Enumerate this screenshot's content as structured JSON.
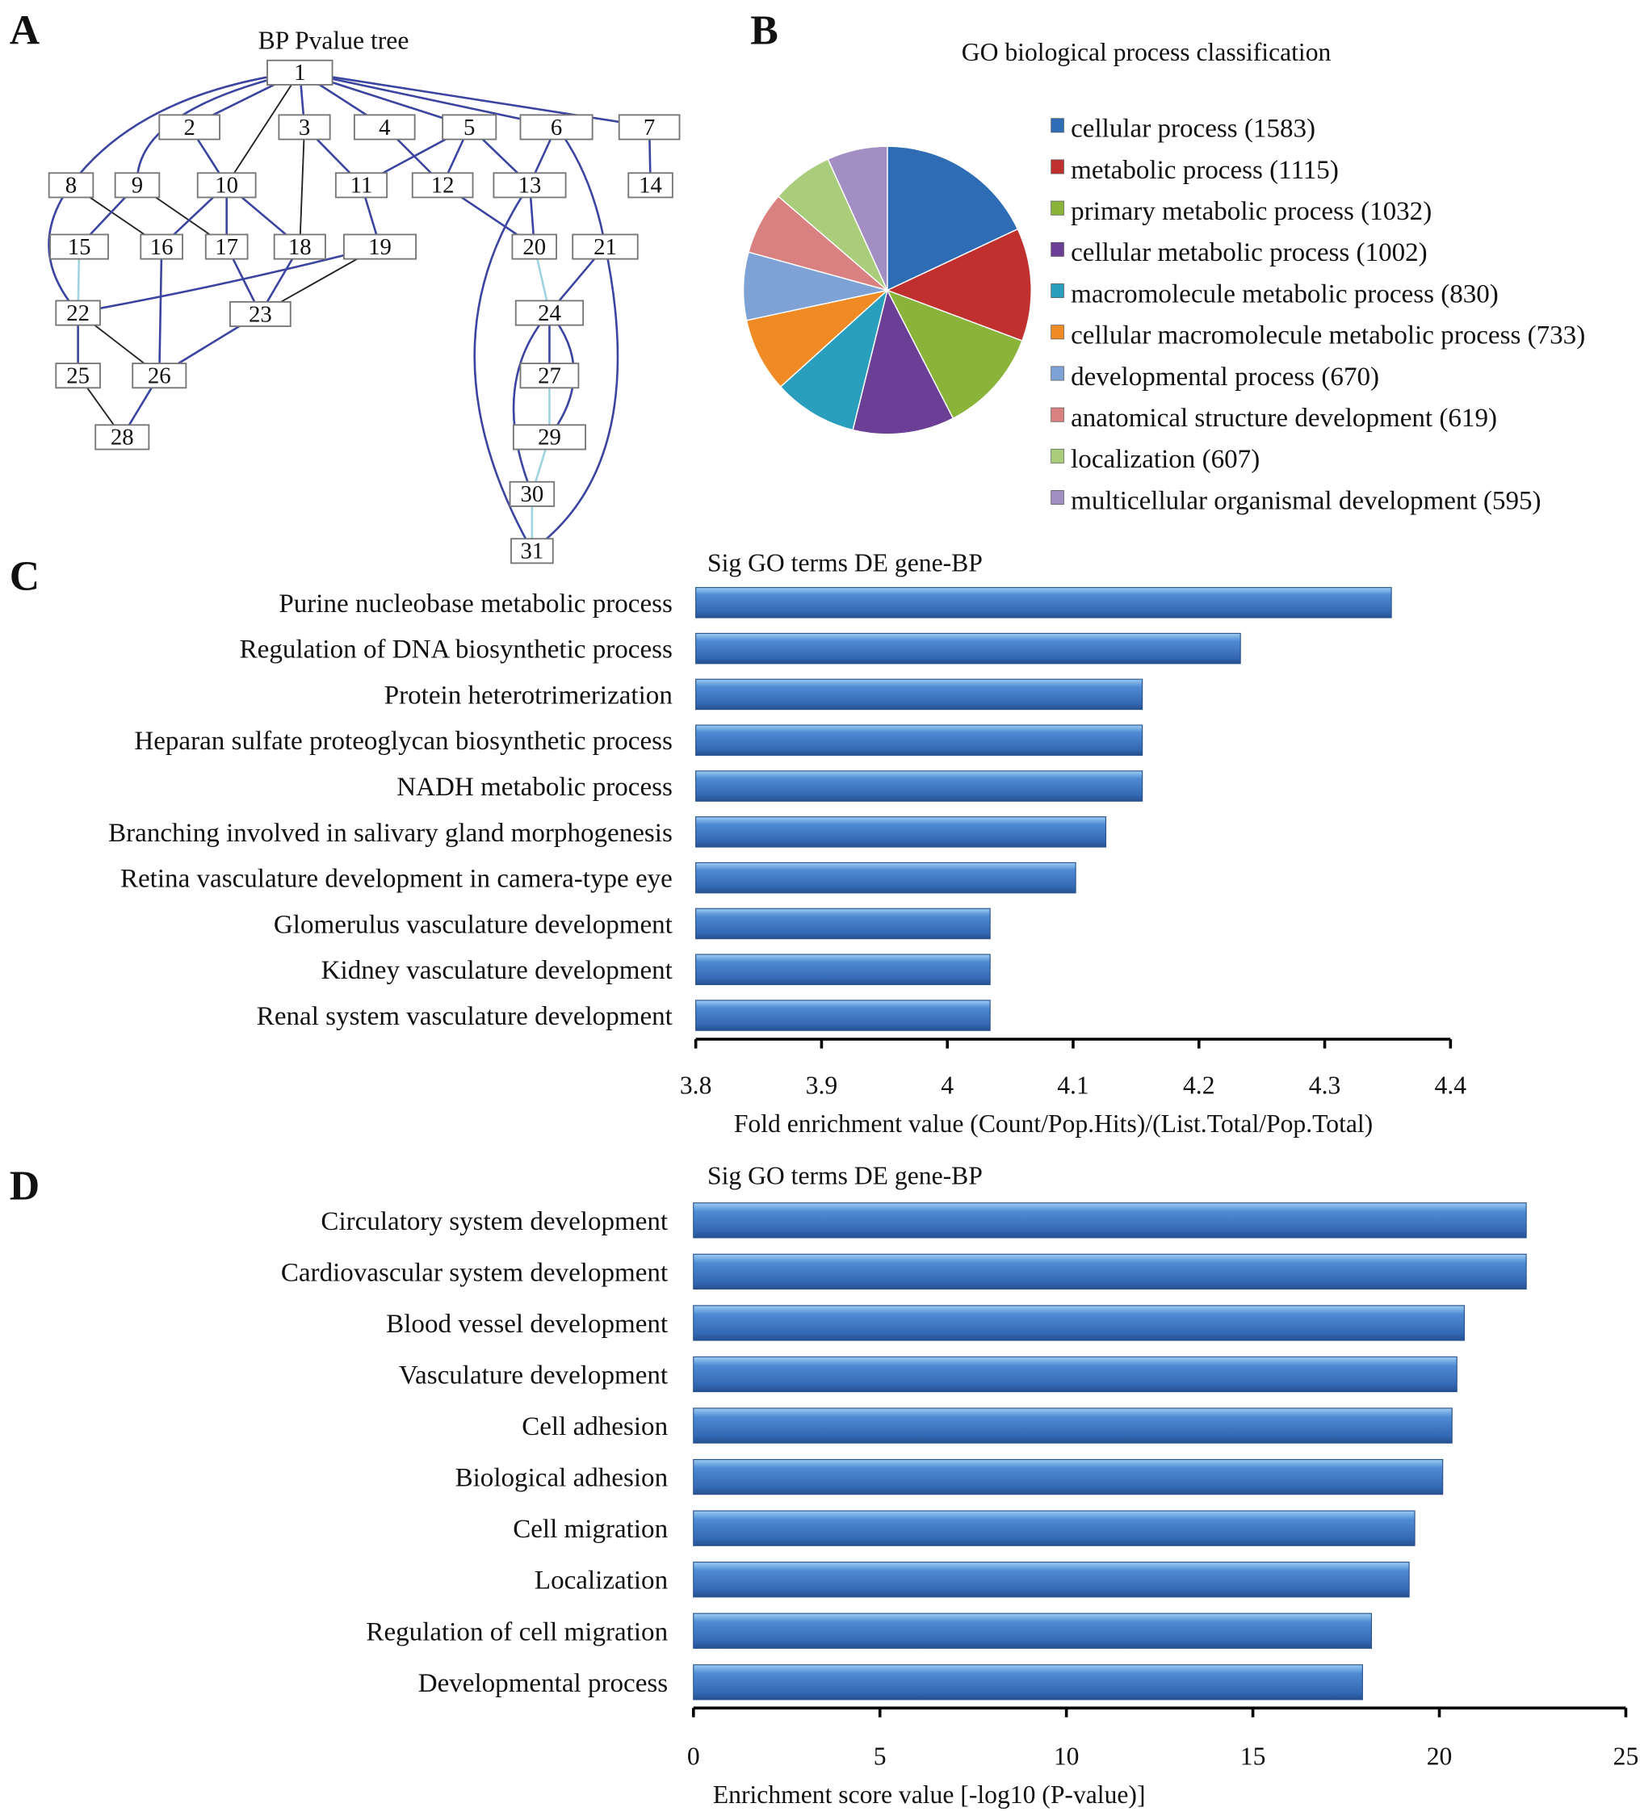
{
  "panels": {
    "a": "A",
    "b": "B",
    "c": "C",
    "d": "D"
  },
  "tree": {
    "title": "BP Pvalue tree",
    "nodes": [
      "1",
      "2",
      "3",
      "4",
      "5",
      "6",
      "7",
      "8",
      "9",
      "10",
      "11",
      "12",
      "13",
      "14",
      "15",
      "16",
      "17",
      "18",
      "19",
      "20",
      "21",
      "22",
      "23",
      "24",
      "25",
      "26",
      "27",
      "28",
      "29",
      "30",
      "31"
    ],
    "edge_colors": {
      "blue": "#3b44a0",
      "black": "#222222",
      "light": "#9fd3e0"
    },
    "edges": [
      [
        "1",
        "2",
        "blue"
      ],
      [
        "1",
        "3",
        "blue"
      ],
      [
        "1",
        "4",
        "blue"
      ],
      [
        "1",
        "5",
        "blue"
      ],
      [
        "1",
        "6",
        "blue"
      ],
      [
        "1",
        "7",
        "blue"
      ],
      [
        "1",
        "8",
        "blue"
      ],
      [
        "1",
        "9",
        "blue"
      ],
      [
        "1",
        "10",
        "black"
      ],
      [
        "2",
        "10",
        "blue"
      ],
      [
        "3",
        "11",
        "blue"
      ],
      [
        "3",
        "18",
        "black"
      ],
      [
        "4",
        "12",
        "blue"
      ],
      [
        "5",
        "11",
        "blue"
      ],
      [
        "5",
        "12",
        "blue"
      ],
      [
        "5",
        "13",
        "blue"
      ],
      [
        "6",
        "13",
        "blue"
      ],
      [
        "6",
        "21",
        "blue"
      ],
      [
        "7",
        "14",
        "blue"
      ],
      [
        "8",
        "16",
        "black"
      ],
      [
        "8",
        "22",
        "blue"
      ],
      [
        "9",
        "15",
        "blue"
      ],
      [
        "9",
        "17",
        "black"
      ],
      [
        "10",
        "16",
        "blue"
      ],
      [
        "10",
        "17",
        "blue"
      ],
      [
        "10",
        "18",
        "blue"
      ],
      [
        "11",
        "19",
        "blue"
      ],
      [
        "12",
        "20",
        "blue"
      ],
      [
        "13",
        "20",
        "blue"
      ],
      [
        "13",
        "31",
        "blue"
      ],
      [
        "15",
        "22",
        "light"
      ],
      [
        "16",
        "26",
        "blue"
      ],
      [
        "17",
        "23",
        "blue"
      ],
      [
        "18",
        "23",
        "blue"
      ],
      [
        "19",
        "22",
        "blue"
      ],
      [
        "19",
        "23",
        "black"
      ],
      [
        "20",
        "24",
        "light"
      ],
      [
        "21",
        "24",
        "blue"
      ],
      [
        "21",
        "31",
        "blue"
      ],
      [
        "22",
        "25",
        "blue"
      ],
      [
        "22",
        "26",
        "black"
      ],
      [
        "23",
        "26",
        "blue"
      ],
      [
        "24",
        "27",
        "blue"
      ],
      [
        "24",
        "29",
        "blue"
      ],
      [
        "24",
        "30",
        "blue"
      ],
      [
        "25",
        "28",
        "black"
      ],
      [
        "26",
        "28",
        "blue"
      ],
      [
        "27",
        "29",
        "light"
      ],
      [
        "29",
        "30",
        "light"
      ],
      [
        "30",
        "31",
        "light"
      ]
    ]
  },
  "chart_data": [
    {
      "type": "pie",
      "title": "GO biological process classification",
      "legend_position": "right",
      "slices": [
        {
          "label": "cellular process (1583)",
          "value": 1583,
          "color": "#2e6db5"
        },
        {
          "label": "metabolic process (1115)",
          "value": 1115,
          "color": "#c0302f"
        },
        {
          "label": "primary metabolic process (1032)",
          "value": 1032,
          "color": "#8ab33a"
        },
        {
          "label": "cellular metabolic process (1002)",
          "value": 1002,
          "color": "#6b3f95"
        },
        {
          "label": "macromolecule metabolic process (830)",
          "value": 830,
          "color": "#2a9fbd"
        },
        {
          "label": "cellular macromolecule metabolic process (733)",
          "value": 733,
          "color": "#ef8a24"
        },
        {
          "label": "developmental process (670)",
          "value": 670,
          "color": "#7ea2d6"
        },
        {
          "label": "anatomical structure development (619)",
          "value": 619,
          "color": "#d98080"
        },
        {
          "label": "localization (607)",
          "value": 607,
          "color": "#a9cd7a"
        },
        {
          "label": "multicellular organismal development (595)",
          "value": 595,
          "color": "#a38ec4"
        }
      ]
    },
    {
      "type": "bar",
      "orientation": "horizontal",
      "title": "Sig GO terms DE gene-BP",
      "xlabel": "Fold enrichment value (Count/Pop.Hits)/(List.Total/Pop.Total)",
      "xlim": [
        3.8,
        4.4
      ],
      "ticks": [
        "3.8",
        "3.9",
        "4",
        "4.1",
        "4.2",
        "4.3",
        "4.4"
      ],
      "bar_color": "#3a72c0",
      "categories": [
        "Purine nucleobase metabolic process",
        "Regulation of DNA biosynthetic process",
        "Protein heterotrimerization",
        "Heparan sulfate proteoglycan biosynthetic process",
        "NADH metabolic process",
        "Branching involved in salivary gland morphogenesis",
        "Retina vasculature development in camera-type eye",
        "Glomerulus vasculature development",
        "Kidney vasculature development",
        "Renal system vasculature development"
      ],
      "values": [
        4.353,
        4.233,
        4.155,
        4.155,
        4.155,
        4.126,
        4.102,
        4.034,
        4.034,
        4.034
      ]
    },
    {
      "type": "bar",
      "orientation": "horizontal",
      "title": "Sig GO terms DE gene-BP",
      "xlabel": "Enrichment score value [-log10 (P-value)]",
      "xlim": [
        0,
        25
      ],
      "ticks": [
        "0",
        "5",
        "10",
        "15",
        "20",
        "25"
      ],
      "bar_color": "#3a72c0",
      "categories": [
        "Circulatory system development",
        "Cardiovascular system development",
        "Blood vessel development",
        "Vasculature development",
        "Cell adhesion",
        "Biological adhesion",
        "Cell migration",
        "Localization",
        "Regulation of cell migration",
        "Developmental process"
      ],
      "values": [
        22.33,
        22.33,
        20.67,
        20.47,
        20.34,
        20.09,
        19.34,
        19.19,
        18.18,
        17.94
      ]
    }
  ]
}
